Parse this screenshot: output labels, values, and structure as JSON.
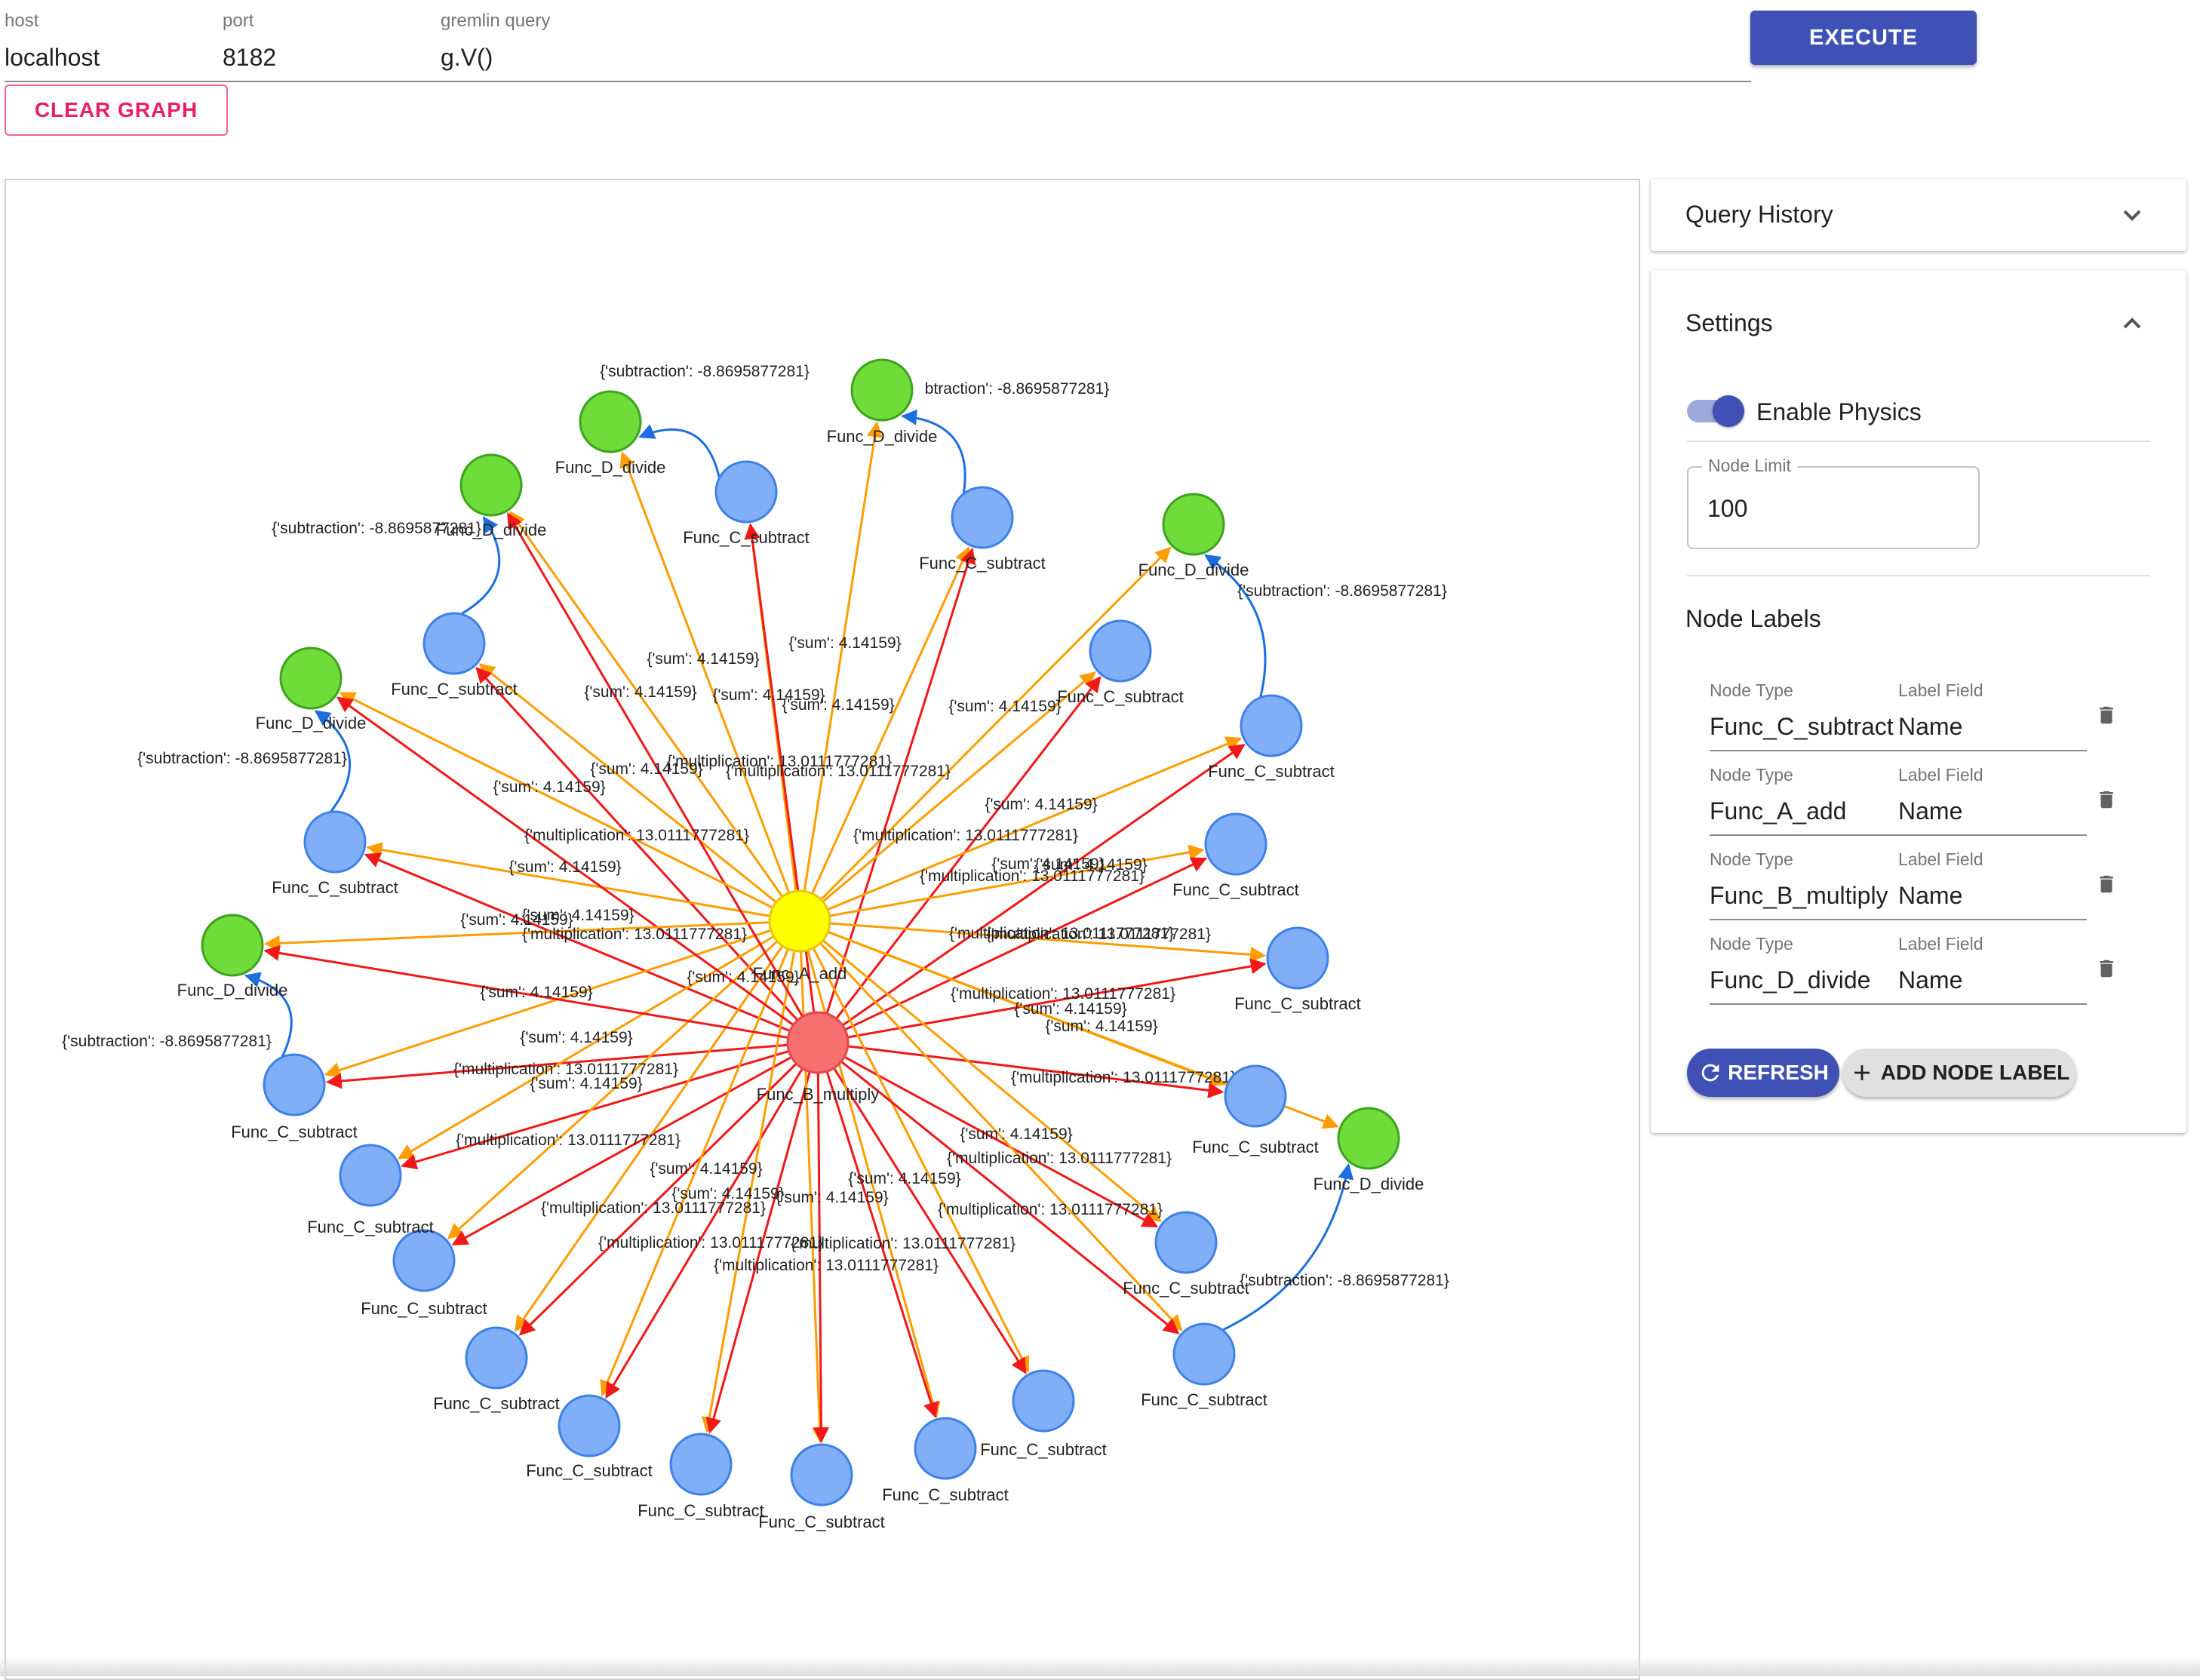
{
  "connection": {
    "host_label": "host",
    "host_value": "localhost",
    "port_label": "port",
    "port_value": "8182",
    "query_label": "gremlin query",
    "query_value": "g.V()"
  },
  "buttons": {
    "execute": "EXECUTE",
    "clear_graph": "CLEAR GRAPH"
  },
  "sidebar": {
    "query_history_title": "Query History",
    "settings_title": "Settings",
    "enable_physics_label": "Enable Physics",
    "enable_physics_on": true,
    "node_limit_label": "Node Limit",
    "node_limit_value": "100",
    "node_labels_title": "Node Labels",
    "node_type_caption": "Node Type",
    "label_field_caption": "Label Field",
    "node_labels": [
      {
        "node_type": "Func_C_subtract",
        "label_field": "Name"
      },
      {
        "node_type": "Func_A_add",
        "label_field": "Name"
      },
      {
        "node_type": "Func_B_multiply",
        "label_field": "Name"
      },
      {
        "node_type": "Func_D_divide",
        "label_field": "Name"
      }
    ],
    "refresh_button": "REFRESH",
    "add_node_label_button": "ADD NODE LABEL"
  },
  "graph": {
    "colors": {
      "hub_a": "#ffff00",
      "hub_b": "#f77070",
      "divide": "#6fdc3a",
      "subtract": "#80aef7",
      "edge_sum": "#ff9d00",
      "edge_mult": "#f01818",
      "edge_sub": "#1d6fe0"
    },
    "hub_a_label": "Func_A_add",
    "hub_b_label": "Func_B_multiply",
    "subtract_label": "Func_C_subtract",
    "divide_label": "Func_D_divide",
    "sum_edge_label": "{'sum': 4.14159}",
    "mult_edge_label": "{'multiplication': 13.0111777281}",
    "sub_edge_label": "{'subtraction': -8.8695877281}",
    "sub_edge_fragment": "btraction': -8.8695877281}"
  }
}
